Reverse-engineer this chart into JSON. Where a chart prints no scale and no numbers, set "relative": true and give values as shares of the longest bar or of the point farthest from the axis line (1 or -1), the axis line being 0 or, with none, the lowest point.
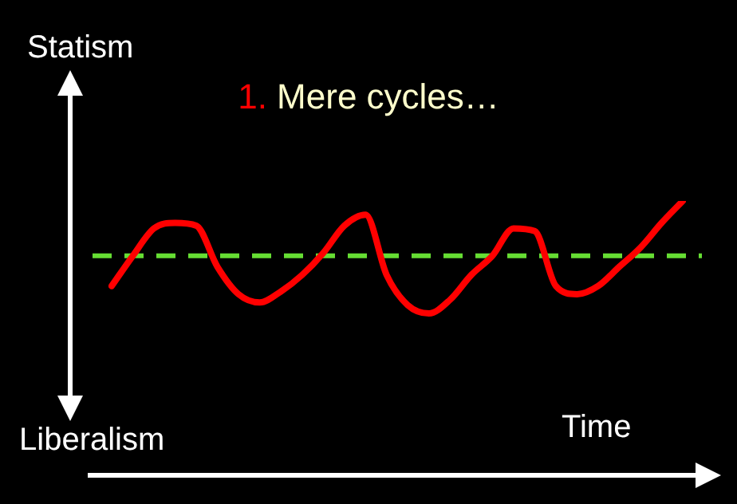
{
  "chart_data": {
    "type": "line",
    "title": "1. Mere cycles…",
    "xlabel": "Time",
    "annotations": [
      "Statism",
      "Liberalism"
    ],
    "relative": true,
    "categories": [
      null,
      null,
      null,
      null,
      null,
      null,
      null,
      null,
      null,
      null,
      null,
      null,
      null,
      null,
      null,
      null,
      null,
      null,
      null,
      null,
      null,
      null,
      null,
      null,
      null,
      null,
      null,
      null
    ],
    "series": [
      {
        "color": "#ff0000",
        "values": [
          0.69,
          0.8,
          0.9,
          0.92,
          0.91,
          0.76,
          0.66,
          0.63,
          0.67,
          0.73,
          0.81,
          0.91,
          0.95,
          0.73,
          0.62,
          0.59,
          0.64,
          0.73,
          0.8,
          0.9,
          0.89,
          0.69,
          0.66,
          0.69,
          0.76,
          0.83,
          0.92,
          1
        ]
      }
    ],
    "ref_lines": [
      {
        "axis": "y",
        "value": 0.8,
        "color": "#66dd33",
        "line_style": "dashed"
      }
    ],
    "marker": "none",
    "line_style": "solid",
    "legend": false
  }
}
